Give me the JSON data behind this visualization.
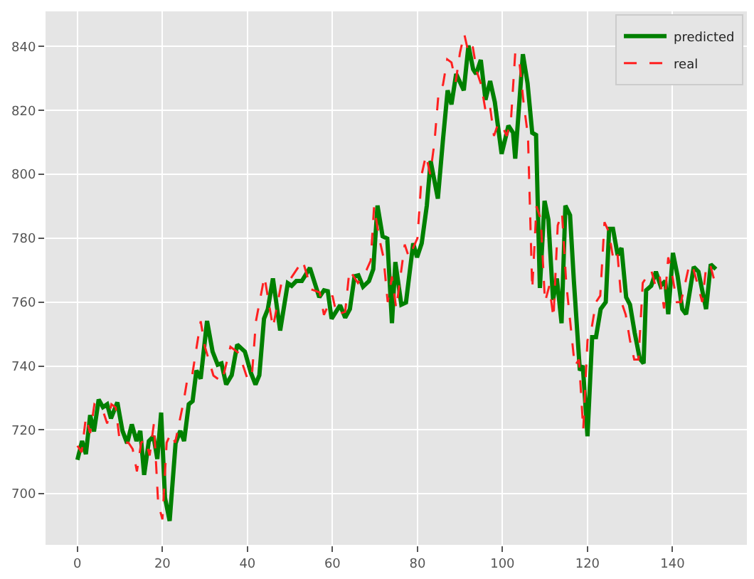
{
  "chart_data": {
    "type": "line",
    "xlim": [
      -7.5,
      157.5
    ],
    "ylim": [
      684,
      851
    ],
    "xticks": [
      0,
      20,
      40,
      60,
      80,
      100,
      120,
      140
    ],
    "yticks": [
      700,
      720,
      740,
      760,
      780,
      800,
      820,
      840
    ],
    "grid": true,
    "legend": "top right",
    "marker": "none",
    "series": [
      {
        "name": "predicted",
        "color": "#008000",
        "line_style": "solid",
        "x": [
          0,
          1.1,
          2,
          3,
          3.9,
          5,
          6,
          7,
          7.9,
          9.4,
          10.6,
          11.7,
          12.8,
          13.9,
          14.8,
          15.7,
          16.8,
          17.9,
          18.8,
          19.7,
          20.6,
          21.7,
          23.1,
          24.2,
          25.1,
          26.2,
          27.1,
          28,
          29,
          30.5,
          31.8,
          33,
          33.9,
          35,
          36.3,
          37.6,
          39.4,
          40.8,
          41.9,
          42.8,
          43.9,
          44.8,
          46,
          47.7,
          49.5,
          50.4,
          51.5,
          52.8,
          54.7,
          56.9,
          58,
          58.9,
          59.8,
          61.8,
          63,
          64.1,
          65.2,
          66.1,
          67.2,
          68.6,
          69.6,
          70.6,
          71.8,
          72.9,
          74,
          74.8,
          76.2,
          77.3,
          79,
          79.9,
          81,
          82.2,
          83.1,
          84.8,
          86,
          87.1,
          88,
          89.1,
          90.9,
          92,
          93.1,
          93.8,
          94.9,
          96,
          97.1,
          98.2,
          99.8,
          101.4,
          102.5,
          103,
          104.8,
          105.9,
          107,
          107.9,
          108.8,
          109.9,
          110.8,
          111.9,
          112.8,
          113.9,
          114.8,
          115.9,
          116.8,
          118.2,
          118.9,
          120,
          121.1,
          122,
          123.1,
          124.3,
          125.1,
          126,
          127.1,
          128,
          129.1,
          130,
          131.1,
          132.3,
          133.2,
          133.8,
          135,
          136.1,
          137.2,
          138.3,
          139,
          140.1,
          141.2,
          142.3,
          143.2,
          145,
          146.1,
          147.9,
          149,
          150.2
        ],
        "values": [
          710.6,
          716.5,
          712.4,
          724.6,
          719.5,
          729.5,
          727.1,
          728,
          723.6,
          728.6,
          719.7,
          715.8,
          721.7,
          716.5,
          719.7,
          705.9,
          716.5,
          718,
          710.9,
          725.4,
          698.8,
          691.5,
          715.8,
          719.7,
          716.5,
          728,
          729,
          738.6,
          736,
          754.1,
          744.5,
          740.4,
          740.8,
          734.2,
          737.1,
          746.7,
          744.5,
          737.9,
          734.2,
          737.1,
          754.8,
          757.8,
          767.4,
          751.1,
          765.9,
          765.1,
          766.6,
          766.6,
          770.7,
          761.5,
          763.7,
          763.4,
          754.8,
          759,
          755.1,
          757.8,
          768.1,
          768.4,
          764.8,
          766.6,
          770.3,
          790.2,
          780.6,
          779.9,
          753.4,
          772.5,
          759.2,
          759.9,
          778.4,
          774,
          778.4,
          790.2,
          804.2,
          792.4,
          810.8,
          826.3,
          821.9,
          831.4,
          826.3,
          840.3,
          832.9,
          831.4,
          835.8,
          823.3,
          829.2,
          822.6,
          806.4,
          815.2,
          813,
          804.9,
          837.6,
          828.5,
          813,
          812.3,
          764.4,
          791.7,
          785.8,
          760.7,
          767.4,
          753.4,
          790.2,
          787.2,
          766.6,
          738.6,
          740.1,
          718,
          749,
          749,
          757.8,
          760,
          782.9,
          782.9,
          774.7,
          776.9,
          761.5,
          759.2,
          750.4,
          742.3,
          740.8,
          763.7,
          765.1,
          769.5,
          765.1,
          766.6,
          756.2,
          775.4,
          768.1,
          757.8,
          756.2,
          771,
          769.5,
          757.8,
          771.8,
          770.3
        ]
      },
      {
        "name": "real",
        "color": "#ff2020",
        "line_style": "dashed",
        "x": [
          0,
          1,
          2,
          3,
          4,
          5,
          6,
          7,
          8,
          9,
          10,
          11,
          12,
          13,
          14,
          15,
          16,
          17,
          18,
          19,
          20,
          21,
          22,
          23,
          25,
          26,
          27,
          29,
          30,
          32,
          34,
          36,
          38,
          40,
          41,
          42,
          44,
          46,
          48,
          50,
          53,
          55,
          57,
          58,
          60,
          61,
          63,
          64,
          65,
          66,
          68,
          69,
          69.8,
          71,
          72,
          73,
          74,
          75,
          77,
          78,
          80,
          81,
          82,
          83,
          84,
          85,
          86,
          87,
          88,
          89,
          90,
          91,
          92,
          93,
          94,
          95,
          96,
          97,
          98,
          99,
          100,
          101,
          102,
          103,
          104,
          105,
          106,
          107,
          108,
          109,
          110,
          111,
          112,
          113,
          114,
          115,
          117,
          118,
          119,
          120,
          121,
          122,
          123,
          124,
          125,
          126,
          127,
          128,
          129,
          130,
          131,
          132,
          133,
          134,
          135,
          136,
          137,
          138,
          139,
          140,
          141,
          142,
          144,
          145,
          146,
          147,
          148,
          149,
          150
        ],
        "values": [
          715,
          713,
          724,
          719,
          728,
          727,
          726,
          722,
          728,
          727,
          716,
          716,
          716,
          714,
          707,
          716,
          717,
          712,
          722,
          697,
          692,
          716,
          719,
          716,
          729,
          737,
          737,
          754,
          746,
          737,
          735,
          746,
          744,
          736,
          736,
          754,
          768,
          752,
          766,
          767,
          773,
          764,
          763,
          756,
          762,
          756,
          757,
          770,
          768,
          766,
          770,
          773,
          790,
          780,
          774,
          760,
          768,
          758,
          778,
          774,
          780,
          800,
          806,
          800,
          810,
          826,
          828,
          836,
          835,
          829,
          838,
          844,
          838,
          840,
          832,
          828,
          820,
          822,
          812,
          816,
          815,
          812,
          817,
          838,
          835,
          822,
          812,
          764,
          790,
          786,
          760,
          765,
          755,
          784,
          788,
          766,
          740,
          742,
          720,
          748,
          752,
          760,
          762,
          785,
          782,
          774,
          776,
          760,
          756,
          748,
          742,
          742,
          766,
          768,
          770,
          765,
          768,
          758,
          774,
          768,
          760,
          760,
          772,
          770,
          765,
          760,
          772,
          771,
          766
        ]
      }
    ]
  }
}
